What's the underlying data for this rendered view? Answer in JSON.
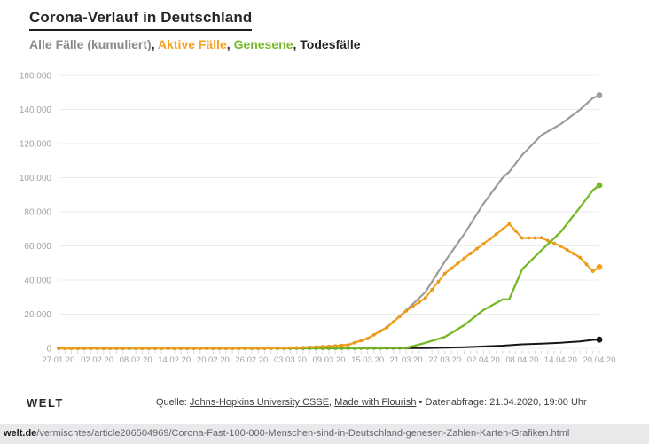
{
  "header": {
    "title": "Corona-Verlauf in Deutschland",
    "legend": {
      "separator": ", ",
      "separator_color": "#242424",
      "parts": [
        {
          "label": "Alle Fälle (kumuliert)",
          "color": "#8a8a8a"
        },
        {
          "label": "Aktive Fälle",
          "color": "#f6a220"
        },
        {
          "label": "Genesene",
          "color": "#78b92a"
        },
        {
          "label": "Todesfälle",
          "color": "#242424"
        }
      ]
    }
  },
  "chart_data": {
    "type": "line",
    "title": "Corona-Verlauf in Deutschland",
    "subtitle": "Alle Fälle (kumuliert), Aktive Fälle, Genesene, Todesfälle",
    "grid": true,
    "legend_position": "top-inline",
    "xlabel": "",
    "ylabel": "",
    "x_max_day": 84,
    "x_start_date": "27.01.20",
    "x_tick_days": [
      0,
      6,
      12,
      18,
      24,
      30,
      36,
      42,
      48,
      54,
      60,
      66,
      72,
      78,
      84
    ],
    "x_tick_labels": [
      "27.01.20",
      "02.02.20",
      "08.02.20",
      "14.02.20",
      "20.02.20",
      "26.02.20",
      "03.03.20",
      "09.03.20",
      "15.03.20",
      "21.03.20",
      "27.03.20",
      "02.04.20",
      "08.04.20",
      "14.04.20",
      "20.04.20"
    ],
    "ylim": [
      0,
      160000
    ],
    "y_ticks": [
      0,
      20000,
      40000,
      60000,
      80000,
      100000,
      120000,
      140000,
      160000
    ],
    "y_tick_labels": [
      "0",
      "20.000",
      "40.000",
      "60.000",
      "80.000",
      "100.000",
      "120.000",
      "140.000",
      "160.000"
    ],
    "days": [
      0,
      3,
      6,
      9,
      12,
      15,
      18,
      21,
      24,
      27,
      30,
      33,
      36,
      39,
      42,
      45,
      48,
      51,
      54,
      57,
      60,
      63,
      66,
      69,
      70,
      72,
      75,
      78,
      81,
      83,
      84
    ],
    "series": [
      {
        "name": "Alle Fälle (kumuliert)",
        "color": "#9c9c9e",
        "values": [
          1,
          4,
          10,
          12,
          13,
          16,
          16,
          16,
          16,
          16,
          27,
          79,
          196,
          670,
          1176,
          2078,
          5795,
          12327,
          22213,
          32986,
          50871,
          66885,
          84794,
          100123,
          103374,
          113296,
          124908,
          131359,
          139897,
          146653,
          148291
        ]
      },
      {
        "name": "Aktive Fälle",
        "color": "#f6a220",
        "marker_stroke": "#d78f0e",
        "markers": "daily",
        "values": [
          1,
          4,
          10,
          12,
          13,
          15,
          15,
          4,
          4,
          2,
          13,
          63,
          180,
          653,
          1156,
          2050,
          5738,
          12194,
          21896,
          29586,
          43871,
          52740,
          61247,
          69839,
          72864,
          64647,
          64741,
          59865,
          53245,
          45200,
          47591
        ]
      },
      {
        "name": "Genesene",
        "color": "#78b92a",
        "marker_stroke": "#639e1d",
        "markers": "flat",
        "values": [
          0,
          0,
          0,
          0,
          0,
          1,
          1,
          12,
          12,
          14,
          14,
          16,
          16,
          17,
          18,
          25,
          46,
          105,
          233,
          3243,
          6658,
          13500,
          22440,
          28700,
          28700,
          46300,
          57400,
          68200,
          82600,
          92700,
          95591
        ]
      },
      {
        "name": "Todesfälle",
        "color": "#161616",
        "values": [
          0,
          0,
          0,
          0,
          0,
          0,
          0,
          0,
          0,
          0,
          0,
          0,
          0,
          0,
          2,
          3,
          11,
          28,
          84,
          157,
          342,
          645,
          1107,
          1584,
          1810,
          2349,
          2767,
          3294,
          4052,
          4953,
          5100
        ]
      }
    ],
    "grid_color": "#ececec",
    "axis_text_color": "#a2a2a2"
  },
  "footer": {
    "logo": "WELT",
    "source_prefix": "Quelle: ",
    "source_link_1": "Johns-Hopkins University CSSE",
    "source_sep": ", ",
    "source_link_2": "Made with Flourish",
    "source_suffix": " • Datenabfrage: 21.04.2020, 19:00 Uhr"
  },
  "url_bar": {
    "domain": "welt.de",
    "path": "/vermischtes/article206504969/Corona-Fast-100-000-Menschen-sind-in-Deutschland-genesen-Zahlen-Karten-Grafiken.html"
  }
}
